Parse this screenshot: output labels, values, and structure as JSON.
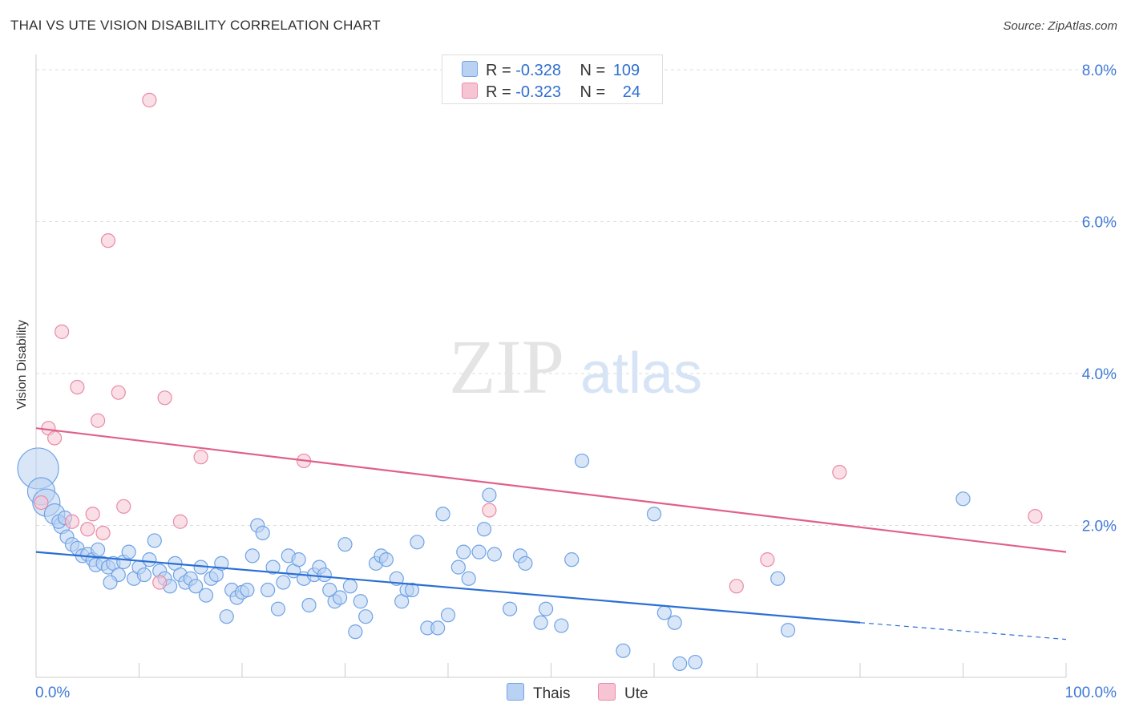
{
  "title": "THAI VS UTE VISION DISABILITY CORRELATION CHART",
  "source": "Source: ZipAtlas.com",
  "watermark": {
    "zip": "ZIP",
    "atlas": "atlas"
  },
  "colors": {
    "blue": "#6fa3e6",
    "blue_fill": "#b9d2f3",
    "blue_line": "#2b6fd3",
    "pink": "#e98aa5",
    "pink_fill": "#f6c4d3",
    "pink_line": "#e0608a",
    "tick_text": "#3f7ad6",
    "grid": "#dddddd"
  },
  "legend": {
    "r_label": "R =",
    "n_label": "N =",
    "rows": [
      {
        "r": "-0.328",
        "n": "109"
      },
      {
        "r": "-0.323",
        "n": "24"
      }
    ]
  },
  "chart_data": {
    "type": "scatter",
    "title": "THAI VS UTE VISION DISABILITY CORRELATION CHART",
    "xlabel": "",
    "ylabel": "Vision Disability",
    "xlim": [
      0,
      100
    ],
    "ylim": [
      0,
      8.2
    ],
    "x_tick_labels": [
      "0.0%",
      "100.0%"
    ],
    "y_ticks": [
      2,
      4,
      6,
      8
    ],
    "y_tick_labels": [
      "2.0%",
      "4.0%",
      "6.0%",
      "8.0%"
    ],
    "grid": true,
    "legend_placement": "bottom-center",
    "series": [
      {
        "name": "Thais",
        "r": -0.328,
        "n": 109,
        "trend": {
          "x0": 0,
          "y0": 1.65,
          "x1": 80,
          "y1": 0.72,
          "dashed_to_x": 100,
          "dashed_to_y": 0.5
        },
        "points": [
          [
            0.2,
            2.75,
            3
          ],
          [
            0.5,
            2.45,
            2
          ],
          [
            1,
            2.3,
            2
          ],
          [
            1.8,
            2.15,
            1.5
          ],
          [
            2.5,
            2.0,
            1.2
          ],
          [
            2.2,
            2.05,
            1
          ],
          [
            3,
            1.85,
            1
          ],
          [
            2.8,
            2.1,
            1
          ],
          [
            3.5,
            1.75,
            1
          ],
          [
            4,
            1.7,
            1
          ],
          [
            4.5,
            1.6,
            1
          ],
          [
            5,
            1.62,
            1
          ],
          [
            5.5,
            1.55,
            1
          ],
          [
            6,
            1.68,
            1
          ],
          [
            5.8,
            1.48,
            1
          ],
          [
            6.5,
            1.5,
            1
          ],
          [
            7,
            1.45,
            1
          ],
          [
            7.5,
            1.5,
            1
          ],
          [
            8,
            1.35,
            1
          ],
          [
            7.2,
            1.25,
            1
          ],
          [
            8.5,
            1.52,
            1
          ],
          [
            9,
            1.65,
            1
          ],
          [
            9.5,
            1.3,
            1
          ],
          [
            10,
            1.45,
            1
          ],
          [
            10.5,
            1.35,
            1
          ],
          [
            11,
            1.55,
            1
          ],
          [
            11.5,
            1.8,
            1
          ],
          [
            12,
            1.4,
            1
          ],
          [
            12.5,
            1.3,
            1
          ],
          [
            13,
            1.2,
            1
          ],
          [
            13.5,
            1.5,
            1
          ],
          [
            14,
            1.35,
            1
          ],
          [
            14.5,
            1.25,
            1
          ],
          [
            15,
            1.3,
            1
          ],
          [
            15.5,
            1.2,
            1
          ],
          [
            16,
            1.45,
            1
          ],
          [
            16.5,
            1.08,
            1
          ],
          [
            17,
            1.3,
            1
          ],
          [
            17.5,
            1.35,
            1
          ],
          [
            18,
            1.5,
            1
          ],
          [
            18.5,
            0.8,
            1
          ],
          [
            19,
            1.15,
            1
          ],
          [
            19.5,
            1.05,
            1
          ],
          [
            20,
            1.12,
            1
          ],
          [
            20.5,
            1.15,
            1
          ],
          [
            21,
            1.6,
            1
          ],
          [
            21.5,
            2.0,
            1
          ],
          [
            22,
            1.9,
            1
          ],
          [
            22.5,
            1.15,
            1
          ],
          [
            23,
            1.45,
            1
          ],
          [
            23.5,
            0.9,
            1
          ],
          [
            24,
            1.25,
            1
          ],
          [
            24.5,
            1.6,
            1
          ],
          [
            25,
            1.4,
            1
          ],
          [
            25.5,
            1.55,
            1
          ],
          [
            26,
            1.3,
            1
          ],
          [
            26.5,
            0.95,
            1
          ],
          [
            27,
            1.35,
            1
          ],
          [
            27.5,
            1.45,
            1
          ],
          [
            28,
            1.35,
            1
          ],
          [
            28.5,
            1.15,
            1
          ],
          [
            29,
            1.0,
            1
          ],
          [
            29.5,
            1.05,
            1
          ],
          [
            30,
            1.75,
            1
          ],
          [
            30.5,
            1.2,
            1
          ],
          [
            31,
            0.6,
            1
          ],
          [
            31.5,
            1.0,
            1
          ],
          [
            32,
            0.8,
            1
          ],
          [
            33,
            1.5,
            1
          ],
          [
            33.5,
            1.6,
            1
          ],
          [
            34,
            1.55,
            1
          ],
          [
            35,
            1.3,
            1
          ],
          [
            35.5,
            1.0,
            1
          ],
          [
            36,
            1.15,
            1
          ],
          [
            36.5,
            1.15,
            1
          ],
          [
            37,
            1.78,
            1
          ],
          [
            38,
            0.65,
            1
          ],
          [
            39,
            0.65,
            1
          ],
          [
            39.5,
            2.15,
            1
          ],
          [
            40,
            0.82,
            1
          ],
          [
            41,
            1.45,
            1
          ],
          [
            41.5,
            1.65,
            1
          ],
          [
            42,
            1.3,
            1
          ],
          [
            43,
            1.65,
            1
          ],
          [
            43.5,
            1.95,
            1
          ],
          [
            44,
            2.4,
            1
          ],
          [
            44.5,
            1.62,
            1
          ],
          [
            46,
            0.9,
            1
          ],
          [
            47,
            1.6,
            1
          ],
          [
            47.5,
            1.5,
            1
          ],
          [
            49,
            0.72,
            1
          ],
          [
            49.5,
            0.9,
            1
          ],
          [
            51,
            0.68,
            1
          ],
          [
            52,
            1.55,
            1
          ],
          [
            53,
            2.85,
            1
          ],
          [
            57,
            0.35,
            1
          ],
          [
            60,
            2.15,
            1
          ],
          [
            61,
            0.85,
            1
          ],
          [
            62,
            0.72,
            1
          ],
          [
            62.5,
            0.18,
            1
          ],
          [
            64,
            0.2,
            1
          ],
          [
            72,
            1.3,
            1
          ],
          [
            73,
            0.62,
            1
          ],
          [
            90,
            2.35,
            1
          ]
        ]
      },
      {
        "name": "Ute",
        "r": -0.323,
        "n": 24,
        "trend": {
          "x0": 0,
          "y0": 3.28,
          "x1": 100,
          "y1": 1.65
        },
        "points": [
          [
            0.5,
            2.3
          ],
          [
            1.2,
            3.28
          ],
          [
            1.8,
            3.15
          ],
          [
            2.5,
            4.55
          ],
          [
            3.5,
            2.05
          ],
          [
            4,
            3.82
          ],
          [
            5,
            1.95
          ],
          [
            5.5,
            2.15
          ],
          [
            6,
            3.38
          ],
          [
            6.5,
            1.9
          ],
          [
            7,
            5.75
          ],
          [
            8,
            3.75
          ],
          [
            8.5,
            2.25
          ],
          [
            11,
            7.6
          ],
          [
            12,
            1.25
          ],
          [
            12.5,
            3.68
          ],
          [
            14,
            2.05
          ],
          [
            16,
            2.9
          ],
          [
            26,
            2.85
          ],
          [
            44,
            2.2
          ],
          [
            68,
            1.2
          ],
          [
            71,
            1.55
          ],
          [
            78,
            2.7
          ],
          [
            97,
            2.12
          ]
        ]
      }
    ]
  }
}
